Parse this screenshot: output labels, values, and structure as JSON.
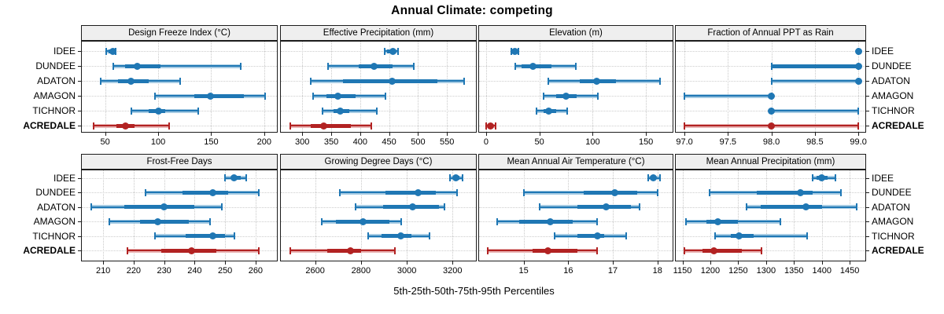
{
  "title": "Annual Climate: competing",
  "caption": "5th-25th-50th-75th-95th Percentiles",
  "chart_data": {
    "type": "dot-whisker-trellis",
    "description": "Two-row, four-column trellis of percentile interval plots; whisker caps = 5th/95th, light band = 5th-95th, thick bar = 25th-75th, dot = 50th percentile.",
    "percentile_order": [
      "p5",
      "p25",
      "p50",
      "p75",
      "p95"
    ],
    "legend_position": "none",
    "grid": "dotted",
    "rows": [
      {
        "label": "IDEE",
        "color": "blue",
        "bold": false
      },
      {
        "label": "DUNDEE",
        "color": "blue",
        "bold": false
      },
      {
        "label": "ADATON",
        "color": "blue",
        "bold": false
      },
      {
        "label": "AMAGON",
        "color": "blue",
        "bold": false
      },
      {
        "label": "TICHNOR",
        "color": "blue",
        "bold": false
      },
      {
        "label": "ACREDALE",
        "color": "red",
        "bold": true
      }
    ],
    "colors": {
      "blue": "#1f77b4",
      "blue_band": "#a6cbe3",
      "red": "#b22222",
      "red_band": "#e9b4b4",
      "strip_bg": "#efefef",
      "border": "#1c1c1c",
      "gridline": "#c9c9c9"
    },
    "panels": [
      {
        "title": "Design Freeze Index (°C)",
        "xlim": [
          28,
          212
        ],
        "ticks": [
          50,
          100,
          150,
          200
        ],
        "tick_labels": [
          "50",
          "100",
          "150",
          "200"
        ],
        "values": [
          [
            51,
            53,
            57,
            58,
            60
          ],
          [
            58,
            69,
            80,
            102,
            178
          ],
          [
            46,
            62,
            74,
            91,
            121
          ],
          [
            97,
            134,
            149,
            181,
            201
          ],
          [
            75,
            91,
            100,
            107,
            138
          ],
          [
            39,
            61,
            69,
            78,
            110
          ]
        ]
      },
      {
        "title": "Effective Precipitation (mm)",
        "xlim": [
          263,
          600
        ],
        "ticks": [
          300,
          350,
          400,
          450,
          500,
          550
        ],
        "tick_labels": [
          "300",
          "350",
          "400",
          "450",
          "500",
          "550"
        ],
        "values": [
          [
            443,
            447,
            456,
            462,
            465
          ],
          [
            345,
            397,
            424,
            456,
            492
          ],
          [
            315,
            370,
            455,
            534,
            579
          ],
          [
            319,
            342,
            362,
            392,
            444
          ],
          [
            335,
            354,
            365,
            381,
            429
          ],
          [
            279,
            314,
            337,
            384,
            419
          ]
        ]
      },
      {
        "title": "Elevation (m)",
        "xlim": [
          -6.6,
          175
        ],
        "ticks": [
          0,
          50,
          100,
          150
        ],
        "tick_labels": [
          "0",
          "50",
          "100",
          "150"
        ],
        "values": [
          [
            24,
            26,
            27,
            29,
            30
          ],
          [
            27,
            33,
            44,
            61,
            84
          ],
          [
            58,
            88,
            104,
            122,
            163
          ],
          [
            54,
            66,
            75,
            85,
            105
          ],
          [
            47,
            54,
            59,
            66,
            76
          ],
          [
            0,
            2,
            4,
            6,
            9
          ]
        ]
      },
      {
        "title": "Fraction of Annual PPT as Rain",
        "xlim": [
          96.9,
          99.08
        ],
        "ticks": [
          97.0,
          97.5,
          98.0,
          98.5,
          99.0
        ],
        "tick_labels": [
          "97.0",
          "97.5",
          "98.0",
          "98.5",
          "99.0"
        ],
        "values": [
          [
            99,
            99,
            99,
            99,
            99
          ],
          [
            98,
            98,
            99,
            99,
            99
          ],
          [
            98,
            99,
            99,
            99,
            99
          ],
          [
            97,
            98,
            98,
            98,
            98
          ],
          [
            98,
            98,
            98,
            98,
            99
          ],
          [
            97,
            98,
            98,
            98,
            99
          ]
        ]
      },
      {
        "title": "Frost-Free Days",
        "xlim": [
          203,
          267
        ],
        "ticks": [
          210,
          220,
          230,
          240,
          250,
          260
        ],
        "tick_labels": [
          "210",
          "220",
          "230",
          "240",
          "250",
          "260"
        ],
        "values": [
          [
            250,
            252,
            253,
            255,
            257
          ],
          [
            224,
            236,
            246,
            251,
            261
          ],
          [
            206,
            217,
            230,
            240,
            249
          ],
          [
            212,
            222,
            228,
            238,
            245
          ],
          [
            227,
            237,
            246,
            250,
            253
          ],
          [
            218,
            229,
            239,
            247,
            261
          ]
        ]
      },
      {
        "title": "Growing Degree Days (°C)",
        "xlim": [
          2450,
          3302
        ],
        "ticks": [
          2600,
          2800,
          3000,
          3200
        ],
        "tick_labels": [
          "2600",
          "2800",
          "3000",
          "3200"
        ],
        "values": [
          [
            3190,
            3203,
            3215,
            3231,
            3243
          ],
          [
            2706,
            2907,
            3051,
            3128,
            3219
          ],
          [
            2776,
            2896,
            3024,
            3140,
            3163
          ],
          [
            2628,
            2691,
            2808,
            2924,
            2975
          ],
          [
            2830,
            2890,
            2975,
            3020,
            3098
          ],
          [
            2492,
            2651,
            2753,
            2799,
            2947
          ]
        ]
      },
      {
        "title": "Mean Annual Air Temperature (°C)",
        "xlim": [
          14.0,
          18.34
        ],
        "ticks": [
          15,
          16,
          17,
          18
        ],
        "tick_labels": [
          "15",
          "16",
          "17",
          "18"
        ],
        "values": [
          [
            17.8,
            17.85,
            17.9,
            17.97,
            18.06
          ],
          [
            15.0,
            16.35,
            17.05,
            17.55,
            18.0
          ],
          [
            15.35,
            16.2,
            16.85,
            17.4,
            17.6
          ],
          [
            14.4,
            14.9,
            15.6,
            16.1,
            16.65
          ],
          [
            15.7,
            16.2,
            16.65,
            16.8,
            17.3
          ],
          [
            14.2,
            15.2,
            15.55,
            16.2,
            16.65
          ]
        ]
      },
      {
        "title": "Mean Annual Precipitation (mm)",
        "xlim": [
          1138,
          1478
        ],
        "ticks": [
          1150,
          1200,
          1250,
          1300,
          1350,
          1400,
          1450
        ],
        "tick_labels": [
          "1150",
          "1200",
          "1250",
          "1300",
          "1350",
          "1400",
          "1450"
        ],
        "values": [
          [
            1383,
            1390,
            1400,
            1410,
            1425
          ],
          [
            1198,
            1284,
            1362,
            1384,
            1434
          ],
          [
            1265,
            1290,
            1372,
            1400,
            1462
          ],
          [
            1156,
            1193,
            1213,
            1249,
            1326
          ],
          [
            1208,
            1237,
            1251,
            1277,
            1374
          ],
          [
            1153,
            1186,
            1206,
            1256,
            1292
          ]
        ]
      }
    ]
  }
}
